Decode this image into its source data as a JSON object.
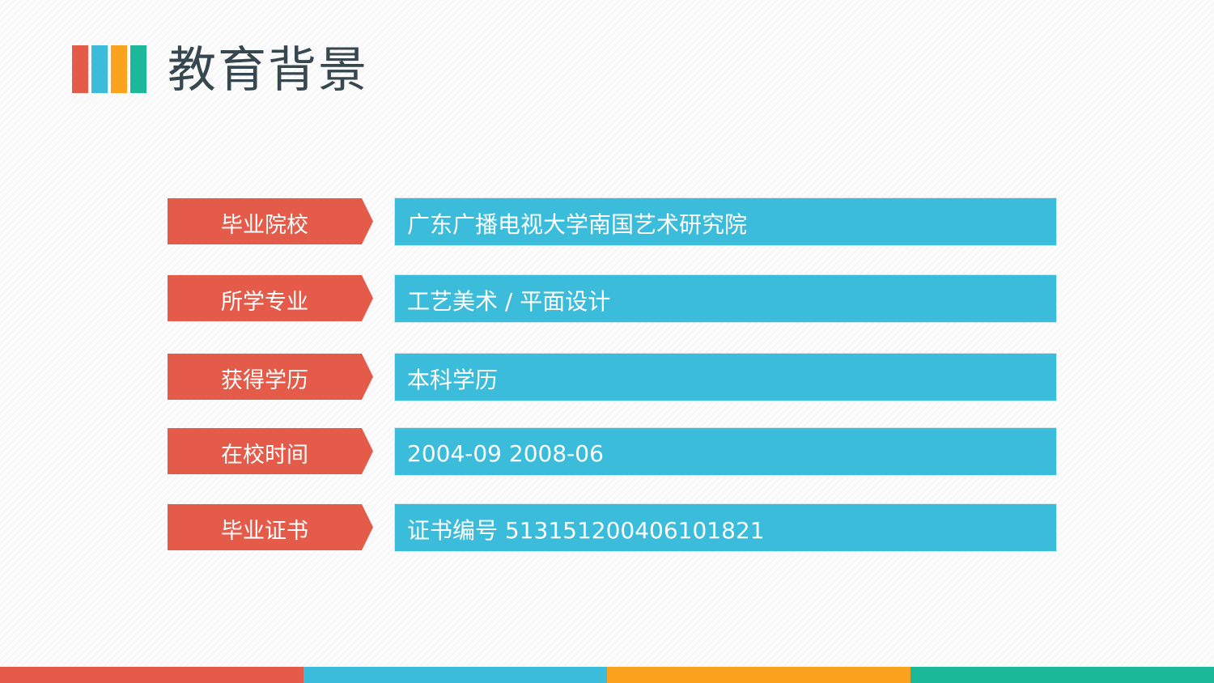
{
  "colors": {
    "red": "#e55b4a",
    "blue": "#3bbcdb",
    "orange": "#fba21f",
    "teal": "#1bb89a",
    "title": "#36474f"
  },
  "title": "教育背景",
  "rows": [
    {
      "label": "毕业院校",
      "value": "广东广播电视大学南国艺术研究院"
    },
    {
      "label": "所学专业",
      "value": "工艺美术 / 平面设计"
    },
    {
      "label": "获得学历",
      "value": "本科学历"
    },
    {
      "label": "在校时间",
      "value": "2004-09 2008-06"
    },
    {
      "label": "毕业证书",
      "value": "证书编号 513151200406101821"
    }
  ]
}
